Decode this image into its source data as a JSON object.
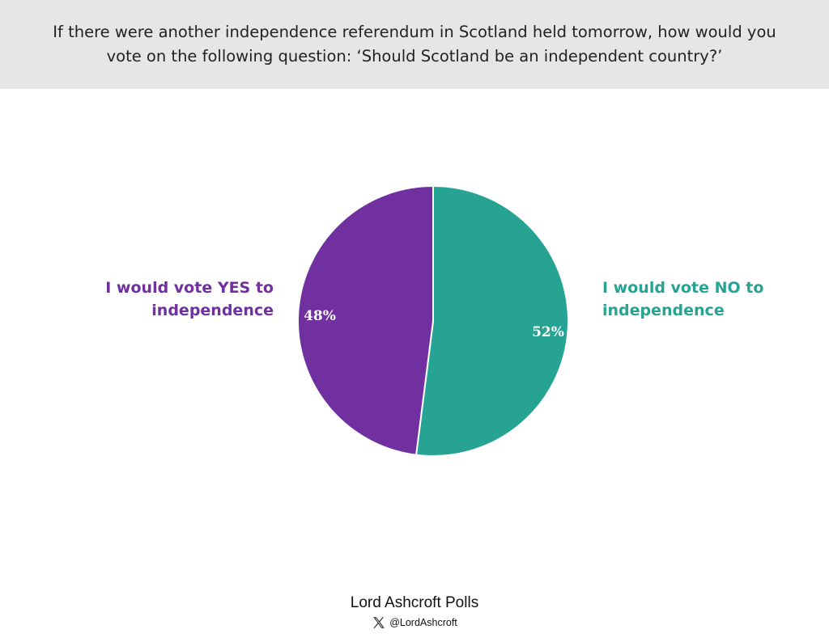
{
  "header": {
    "title": "If there were another independence referendum in Scotland held tomorrow, how would you vote on the following question: ‘Should Scotland be an independent country?’"
  },
  "chart_data": {
    "type": "pie",
    "title": "If there were another independence referendum in Scotland held tomorrow, how would you vote on the following question: ‘Should Scotland be an independent country?’",
    "slices": [
      {
        "label": "I would vote YES to independence",
        "value": 48,
        "display": "48%",
        "color": "#7030a0"
      },
      {
        "label": "I would vote NO to independence",
        "value": 52,
        "display": "52%",
        "color": "#26a392"
      }
    ],
    "start": "12 o'clock",
    "direction": "counterclockwise for YES"
  },
  "footer": {
    "brand": "Lord Ashcroft Polls",
    "handle": "@LordAshcroft",
    "icon": "x-logo-icon"
  }
}
